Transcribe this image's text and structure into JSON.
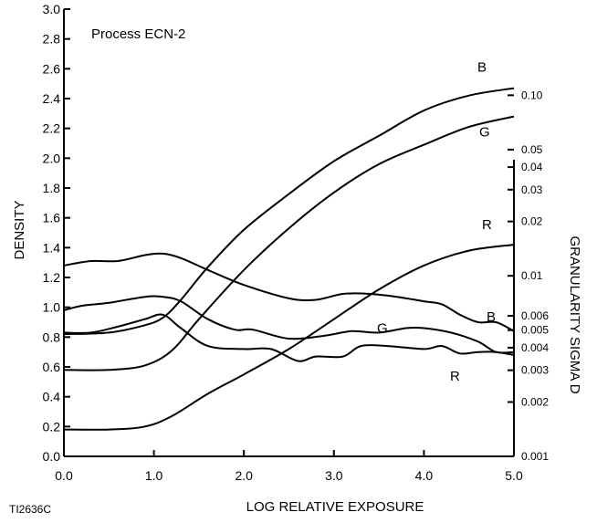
{
  "chart_data": {
    "type": "line",
    "title": "Process ECN-2",
    "xlabel": "LOG RELATIVE EXPOSURE",
    "ylabel": "DENSITY",
    "y2label": "GRANULARITY SIGMA D",
    "xlim": [
      0.0,
      5.0
    ],
    "ylim": [
      0.0,
      3.0
    ],
    "y2lim": [
      0.001,
      0.3
    ],
    "y2scale": "log",
    "grid": false,
    "x_ticks": [
      "0.0",
      "1.0",
      "2.0",
      "3.0",
      "4.0",
      "5.0"
    ],
    "y_ticks": [
      "0.0",
      "0.2",
      "0.4",
      "0.6",
      "0.8",
      "1.0",
      "1.2",
      "1.4",
      "1.6",
      "1.8",
      "2.0",
      "2.2",
      "2.4",
      "2.6",
      "2.8",
      "3.0"
    ],
    "y2_ticks": [
      {
        "value": 0.1,
        "label": "0.10"
      },
      {
        "value": 0.05,
        "label": "0.05"
      },
      {
        "value": 0.04,
        "label": "0.04"
      },
      {
        "value": 0.03,
        "label": "0.03"
      },
      {
        "value": 0.02,
        "label": "0.02"
      },
      {
        "value": 0.01,
        "label": "0.01"
      },
      {
        "value": 0.006,
        "label": "0.006"
      },
      {
        "value": 0.005,
        "label": "0.005"
      },
      {
        "value": 0.004,
        "label": "0.004"
      },
      {
        "value": 0.003,
        "label": "0.003"
      },
      {
        "value": 0.002,
        "label": "0.002"
      },
      {
        "value": 0.001,
        "label": "0.001"
      }
    ],
    "density_series": [
      {
        "name": "B",
        "x": [
          0.0,
          0.5,
          0.9,
          1.1,
          1.3,
          1.6,
          2.0,
          2.5,
          3.0,
          3.5,
          4.0,
          4.5,
          5.0
        ],
        "y": [
          0.82,
          0.83,
          0.88,
          0.93,
          1.05,
          1.27,
          1.52,
          1.76,
          1.98,
          2.15,
          2.32,
          2.42,
          2.47
        ]
      },
      {
        "name": "G",
        "x": [
          0.0,
          0.5,
          0.9,
          1.2,
          1.5,
          2.0,
          2.5,
          3.0,
          3.5,
          4.0,
          4.5,
          5.0
        ],
        "y": [
          0.58,
          0.58,
          0.61,
          0.71,
          0.92,
          1.25,
          1.53,
          1.77,
          1.96,
          2.09,
          2.21,
          2.28
        ]
      },
      {
        "name": "R",
        "x": [
          0.0,
          0.5,
          0.9,
          1.2,
          1.6,
          2.0,
          2.5,
          3.0,
          3.5,
          4.0,
          4.5,
          5.0
        ],
        "y": [
          0.18,
          0.18,
          0.2,
          0.27,
          0.42,
          0.55,
          0.72,
          0.92,
          1.12,
          1.28,
          1.38,
          1.42
        ]
      }
    ],
    "granularity_series": [
      {
        "name": "B",
        "x": [
          0.0,
          0.3,
          0.6,
          0.9,
          1.1,
          1.3,
          1.6,
          2.0,
          2.5,
          2.8,
          3.1,
          3.4,
          3.7,
          4.0,
          4.2,
          4.4,
          4.6,
          4.8,
          5.0
        ],
        "y": [
          1.28,
          1.31,
          1.31,
          1.35,
          1.36,
          1.33,
          1.25,
          1.15,
          1.06,
          1.05,
          1.09,
          1.09,
          1.07,
          1.04,
          1.02,
          0.95,
          0.9,
          0.9,
          0.84
        ]
      },
      {
        "name": "G",
        "x": [
          0.0,
          0.2,
          0.5,
          0.9,
          1.1,
          1.3,
          1.6,
          1.9,
          2.1,
          2.5,
          2.9,
          3.2,
          3.5,
          3.8,
          4.0,
          4.3,
          4.6,
          4.8,
          5.0
        ],
        "y": [
          0.98,
          1.01,
          1.03,
          1.07,
          1.07,
          1.04,
          0.92,
          0.85,
          0.85,
          0.79,
          0.81,
          0.84,
          0.83,
          0.86,
          0.86,
          0.83,
          0.77,
          0.7,
          0.7
        ]
      },
      {
        "name": "R",
        "x": [
          0.0,
          0.3,
          0.6,
          0.9,
          1.1,
          1.3,
          1.6,
          2.0,
          2.3,
          2.6,
          2.8,
          3.1,
          3.3,
          3.6,
          4.0,
          4.2,
          4.4,
          4.6,
          4.8,
          5.0
        ],
        "y": [
          0.83,
          0.83,
          0.87,
          0.92,
          0.95,
          0.86,
          0.74,
          0.72,
          0.72,
          0.64,
          0.67,
          0.67,
          0.74,
          0.74,
          0.72,
          0.74,
          0.69,
          0.7,
          0.7,
          0.68
        ]
      }
    ],
    "curve_labels": [
      {
        "text": "B",
        "series": "density-B"
      },
      {
        "text": "G",
        "series": "density-G"
      },
      {
        "text": "R",
        "series": "density-R"
      },
      {
        "text": "B",
        "series": "granularity-B"
      },
      {
        "text": "G",
        "series": "granularity-G"
      },
      {
        "text": "R",
        "series": "granularity-R"
      }
    ],
    "figure_code": "TI2636C"
  }
}
